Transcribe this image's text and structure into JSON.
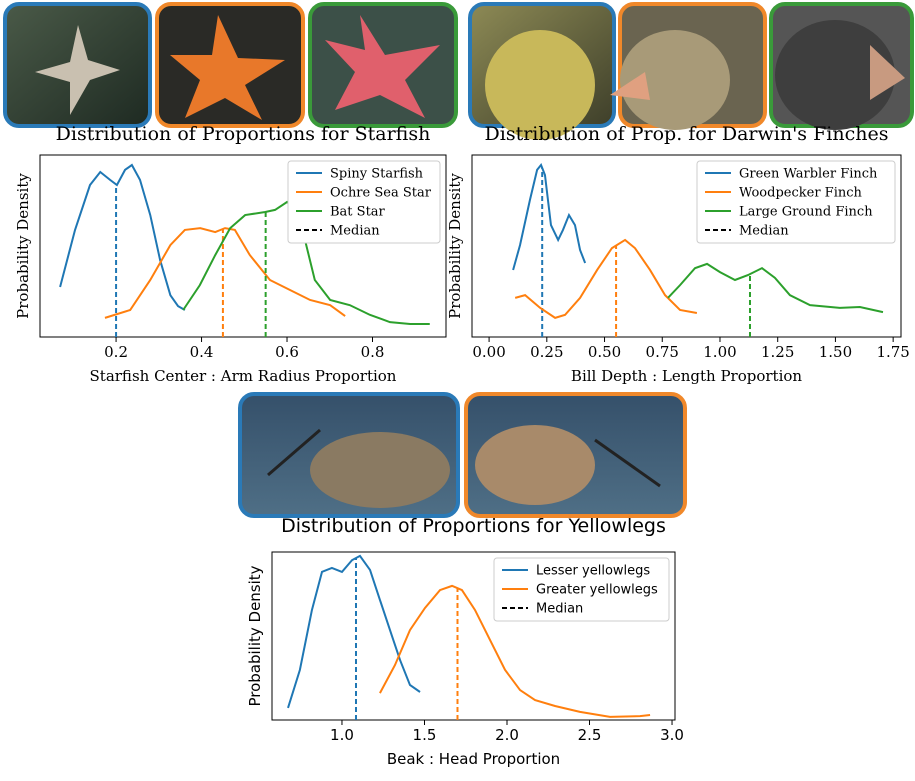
{
  "chart_data": [
    {
      "type": "line",
      "title": "Distribution of Proportions for Starfish",
      "xlabel": "Starfish Center : Arm Radius Proportion",
      "ylabel": "Probability Density",
      "xlim": [
        0.022,
        0.972
      ],
      "xticks": [
        0.2,
        0.4,
        0.6,
        0.8
      ],
      "ylim": [
        0,
        6
      ],
      "legend": "upper right",
      "median_label": "Median",
      "series": [
        {
          "name": "Spiny Starfish",
          "color": "#1f77b4",
          "median": 0.2,
          "x": [
            0.069,
            0.104,
            0.139,
            0.163,
            0.186,
            0.202,
            0.221,
            0.237,
            0.256,
            0.28,
            0.303,
            0.327,
            0.345,
            0.361
          ],
          "values": [
            1.65,
            3.53,
            5.01,
            5.44,
            5.18,
            5.01,
            5.51,
            5.67,
            5.18,
            4.02,
            2.54,
            1.38,
            1.02,
            0.89
          ]
        },
        {
          "name": "Ochre Sea Star",
          "color": "#ff7f0e",
          "median": 0.45,
          "x": [
            0.174,
            0.233,
            0.28,
            0.327,
            0.361,
            0.397,
            0.432,
            0.455,
            0.478,
            0.513,
            0.56,
            0.607,
            0.654,
            0.701,
            0.736
          ],
          "values": [
            0.63,
            0.89,
            1.88,
            3.03,
            3.53,
            3.59,
            3.46,
            3.59,
            3.53,
            2.7,
            1.88,
            1.55,
            1.22,
            1.05,
            0.69
          ]
        },
        {
          "name": "Bat Star",
          "color": "#2ca02c",
          "median": 0.55,
          "x": [
            0.357,
            0.396,
            0.432,
            0.467,
            0.502,
            0.549,
            0.572,
            0.6,
            0.623,
            0.642,
            0.665,
            0.701,
            0.747,
            0.794,
            0.841,
            0.888,
            0.934
          ],
          "values": [
            0.89,
            1.71,
            2.7,
            3.59,
            4.02,
            4.12,
            4.19,
            4.45,
            4.19,
            3.2,
            1.88,
            1.22,
            1.05,
            0.73,
            0.49,
            0.43,
            0.43
          ]
        }
      ]
    },
    {
      "type": "line",
      "title": "Distribution of Prop. for Darwin's Finches",
      "xlabel": "Bill Depth : Length Proportion",
      "ylabel": "Probability Density",
      "xlim": [
        -0.074,
        1.784
      ],
      "xticks": [
        {
          "value": 0,
          "label": "0.00"
        },
        0.25,
        {
          "value": 0.5,
          "label": "0.50"
        },
        0.75,
        {
          "value": 1,
          "label": "1.00"
        },
        1.25,
        {
          "value": 1.5,
          "label": "1.50"
        },
        1.75
      ],
      "ylim": [
        0,
        6
      ],
      "legend": "upper right",
      "median_label": "Median",
      "series": [
        {
          "name": "Green Warbler Finch",
          "color": "#1f77b4",
          "median": 0.23,
          "x": [
            0.104,
            0.134,
            0.177,
            0.208,
            0.225,
            0.242,
            0.268,
            0.299,
            0.32,
            0.346,
            0.372,
            0.394,
            0.416
          ],
          "values": [
            2.21,
            3.03,
            4.52,
            5.51,
            5.67,
            5.34,
            3.69,
            3.2,
            3.53,
            4.02,
            3.69,
            2.87,
            2.44
          ]
        },
        {
          "name": "Woodpecker Finch",
          "color": "#ff7f0e",
          "median": 0.55,
          "x": [
            0.113,
            0.156,
            0.221,
            0.286,
            0.329,
            0.394,
            0.468,
            0.532,
            0.589,
            0.632,
            0.697,
            0.762,
            0.827,
            0.9
          ],
          "values": [
            1.29,
            1.38,
            0.96,
            0.63,
            0.73,
            1.29,
            2.21,
            2.93,
            3.2,
            2.93,
            2.21,
            1.38,
            0.89,
            0.79
          ]
        },
        {
          "name": "Large Ground Finch",
          "color": "#2ca02c",
          "median": 1.13,
          "x": [
            0.775,
            0.827,
            0.892,
            0.944,
            1.0,
            1.065,
            1.121,
            1.182,
            1.238,
            1.303,
            1.39,
            1.519,
            1.606,
            1.706
          ],
          "values": [
            1.29,
            1.71,
            2.27,
            2.41,
            2.14,
            1.88,
            2.04,
            2.27,
            1.95,
            1.38,
            1.05,
            0.96,
            0.99,
            0.82
          ]
        }
      ]
    },
    {
      "type": "line",
      "title": "Distribution of Proportions for Yellowlegs",
      "xlabel": "Beak : Head Proportion",
      "ylabel": "Probability Density",
      "xlim": [
        0.576,
        3.018
      ],
      "xticks": [
        {
          "value": 1,
          "label": "1.0"
        },
        1.5,
        {
          "value": 2,
          "label": "2.0"
        },
        2.5,
        {
          "value": 3,
          "label": "3.0"
        }
      ],
      "ylim": [
        0,
        6
      ],
      "legend": "upper right",
      "median_label": "Median",
      "series": [
        {
          "name": "Lesser yellowlegs",
          "color": "#1f77b4",
          "median": 1.085,
          "x": [
            0.673,
            0.745,
            0.818,
            0.879,
            0.939,
            1.0,
            1.061,
            1.109,
            1.17,
            1.23,
            1.291,
            1.352,
            1.412,
            1.473
          ],
          "values": [
            0.43,
            1.79,
            3.93,
            5.29,
            5.43,
            5.29,
            5.71,
            5.86,
            5.36,
            4.29,
            3.21,
            2.14,
            1.25,
            1.0
          ]
        },
        {
          "name": "Greater yellowlegs",
          "color": "#ff7f0e",
          "median": 1.7,
          "x": [
            1.23,
            1.321,
            1.412,
            1.503,
            1.594,
            1.667,
            1.727,
            1.806,
            1.897,
            1.988,
            2.079,
            2.17,
            2.291,
            2.442,
            2.624,
            2.806,
            2.867
          ],
          "values": [
            0.96,
            1.96,
            3.21,
            4.0,
            4.64,
            4.79,
            4.64,
            3.93,
            2.86,
            1.79,
            1.07,
            0.71,
            0.5,
            0.29,
            0.11,
            0.14,
            0.18
          ]
        }
      ]
    }
  ]
}
